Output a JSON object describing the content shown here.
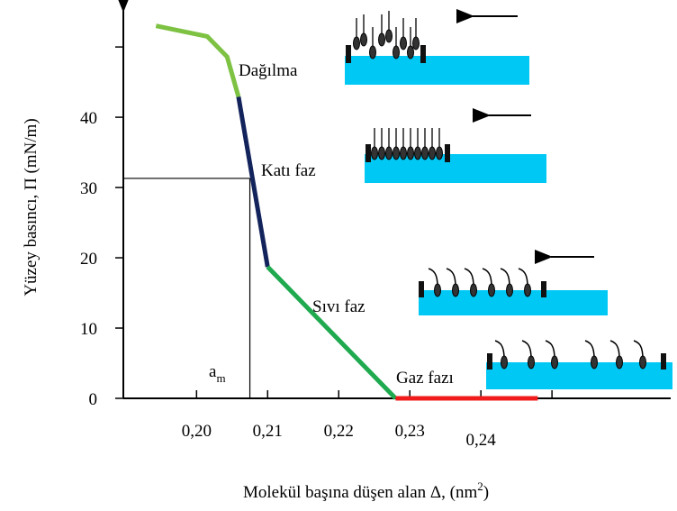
{
  "chart_data": {
    "type": "line",
    "y_label": "Yüzey basıncı, Π (mN/m)",
    "x_label": "Molekül başına düşen alan Δ, (nm",
    "x_label_superscript": "2",
    "x_label_end": ")",
    "xlim": [
      0.1897,
      0.2667
    ],
    "ylim": [
      0,
      55.4
    ],
    "xticks": [
      {
        "value": 0.2,
        "label": "0,20"
      },
      {
        "value": 0.21,
        "label": "0,21"
      },
      {
        "value": 0.22,
        "label": "0,22"
      },
      {
        "value": 0.23,
        "label": "0,23"
      },
      {
        "value": 0.24,
        "label": "0,24"
      },
      {
        "value": 0.25,
        "label": null
      }
    ],
    "yticks": [
      0,
      10,
      20,
      30,
      40,
      {
        "value": 50,
        "label": null
      }
    ],
    "segments": [
      {
        "color": "#7dc242",
        "x": [
          0.1943,
          0.2015,
          0.2043,
          0.2059
        ],
        "values": [
          53,
          51.5,
          48.6,
          42.9
        ]
      },
      {
        "color": "#13235b",
        "x": [
          0.2059,
          0.21
        ],
        "values": [
          42.9,
          18.7
        ]
      },
      {
        "color": "#1faa4f",
        "x": [
          0.21,
          0.228
        ],
        "values": [
          18.7,
          0
        ]
      },
      {
        "color": "#f01c1c",
        "x": [
          0.228,
          0.248
        ],
        "values": [
          0,
          0
        ]
      }
    ],
    "reference": {
      "x": 0.2075,
      "y": 31.3
    },
    "reference_label": "a",
    "reference_label_subscript": "m",
    "phase_labels": [
      "Dağılma",
      "Katı faz",
      "Sıvı faz",
      "Gaz fazı"
    ]
  }
}
